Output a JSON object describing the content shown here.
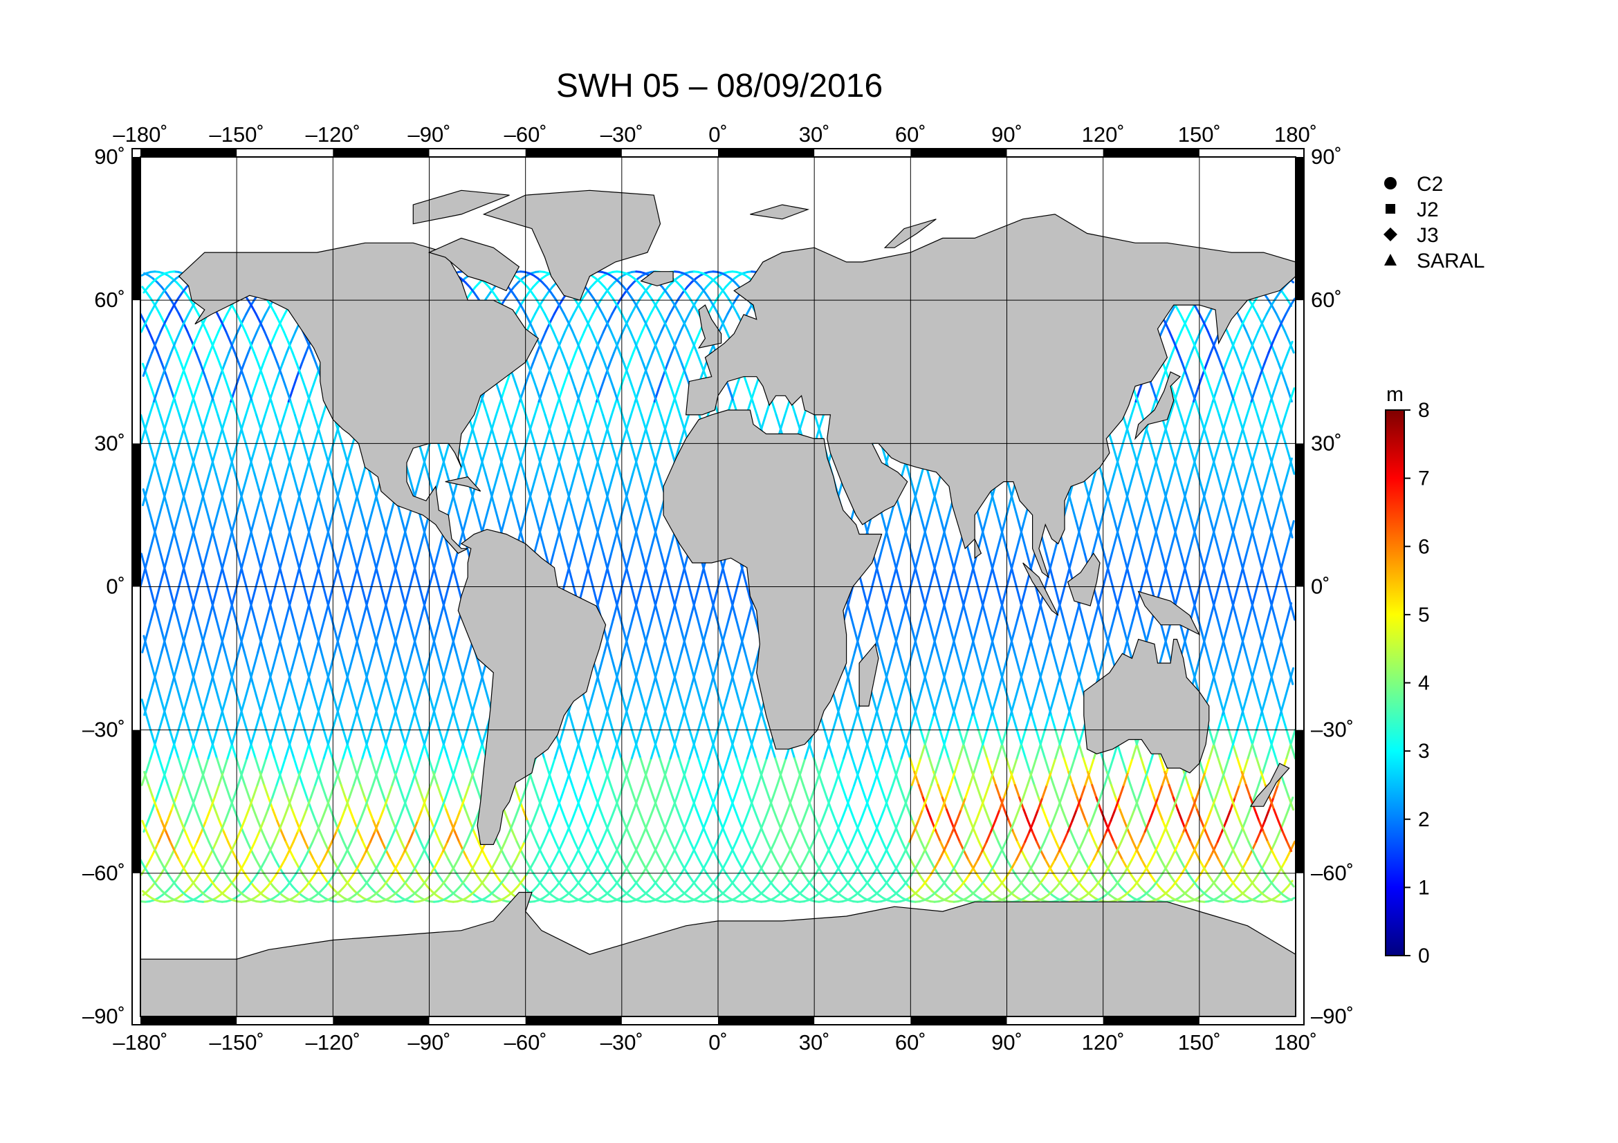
{
  "title": "SWH 05 – 08/09/2016",
  "map": {
    "lon_range": [
      -180,
      180
    ],
    "lat_range": [
      -90,
      90
    ],
    "grid": true,
    "land_color": "#c0c0c0",
    "ocean_color": "#ffffff",
    "lon_ticks": [
      {
        "value": -180,
        "label": "–180˚"
      },
      {
        "value": -150,
        "label": "–150˚"
      },
      {
        "value": -120,
        "label": "–120˚"
      },
      {
        "value": -90,
        "label": "–90˚"
      },
      {
        "value": -60,
        "label": "–60˚"
      },
      {
        "value": -30,
        "label": "–30˚"
      },
      {
        "value": 0,
        "label": "0˚"
      },
      {
        "value": 30,
        "label": "30˚"
      },
      {
        "value": 60,
        "label": "60˚"
      },
      {
        "value": 90,
        "label": "90˚"
      },
      {
        "value": 120,
        "label": "120˚"
      },
      {
        "value": 150,
        "label": "150˚"
      },
      {
        "value": 180,
        "label": "180˚"
      }
    ],
    "lat_ticks": [
      {
        "value": 90,
        "label": "90˚"
      },
      {
        "value": 60,
        "label": "60˚"
      },
      {
        "value": 30,
        "label": "30˚"
      },
      {
        "value": 0,
        "label": "0˚"
      },
      {
        "value": -30,
        "label": "–30˚"
      },
      {
        "value": -60,
        "label": "–60˚"
      },
      {
        "value": -90,
        "label": "–90˚"
      }
    ]
  },
  "legend": [
    {
      "label": "C2",
      "marker": "circle"
    },
    {
      "label": "J2",
      "marker": "square"
    },
    {
      "label": "J3",
      "marker": "diamond"
    },
    {
      "label": "SARAL",
      "marker": "triangle"
    }
  ],
  "colorbar": {
    "unit": "m",
    "min": 0,
    "max": 8,
    "ticks": [
      "0",
      "1",
      "2",
      "3",
      "4",
      "5",
      "6",
      "7",
      "8"
    ],
    "colors": [
      "#00007f",
      "#0000ff",
      "#007fff",
      "#00ffff",
      "#7fff7f",
      "#ffff00",
      "#ff7f00",
      "#ff0000",
      "#7f0000"
    ]
  },
  "chart_data": {
    "type": "map",
    "variable": "SWH",
    "unit": "m",
    "regions_high_swh": [
      {
        "lon_min": 60,
        "lon_max": 180,
        "lat_min": -62,
        "lat_max": -35,
        "swh_approx": [
          4,
          7.5
        ]
      },
      {
        "lon_min": -180,
        "lon_max": -60,
        "lat_min": -65,
        "lat_max": -40,
        "swh_approx": [
          3.5,
          6
        ]
      }
    ],
    "tropics_swh_approx": [
      1,
      3
    ]
  }
}
